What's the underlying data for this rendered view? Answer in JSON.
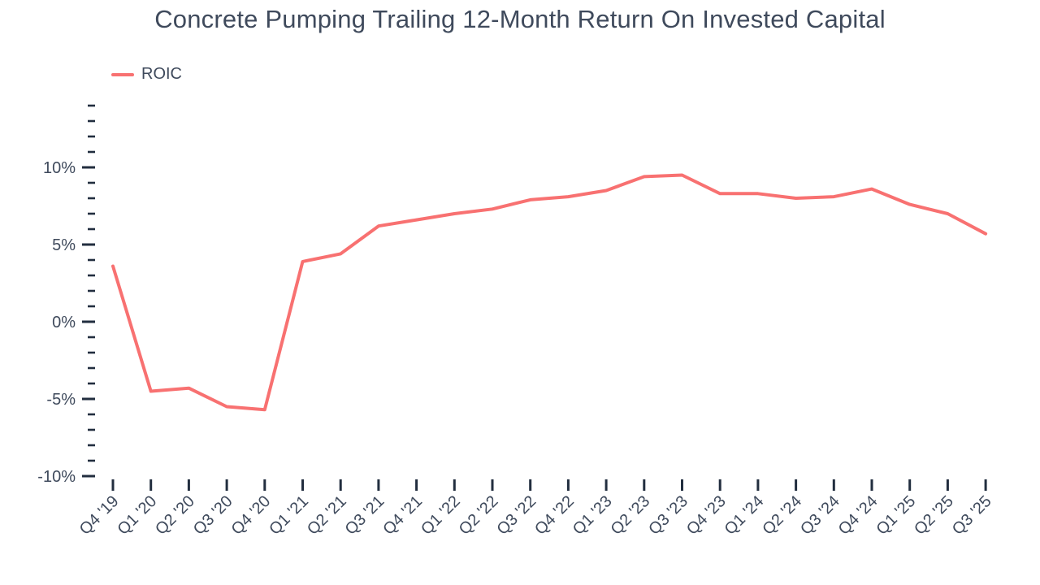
{
  "title": "Concrete Pumping Trailing 12-Month Return On Invested Capital",
  "legend": {
    "label": "ROIC"
  },
  "colors": {
    "line": "#F87171",
    "text": "#3F4A5C",
    "tick": "#222E3F"
  },
  "chart_data": {
    "type": "line",
    "title": "Concrete Pumping Trailing 12-Month Return On Invested Capital",
    "legend_entries": [
      "ROIC"
    ],
    "legend_position": "top-left",
    "grid": false,
    "xlabel": "",
    "ylabel": "",
    "ylim": [
      -10,
      14
    ],
    "y_minor_tick_step": 1,
    "y_major_ticks": [
      {
        "value": -10,
        "label": "-10%"
      },
      {
        "value": -5,
        "label": "-5%"
      },
      {
        "value": 0,
        "label": "0%"
      },
      {
        "value": 5,
        "label": "5%"
      },
      {
        "value": 10,
        "label": "10%"
      }
    ],
    "categories": [
      "Q4 '19",
      "Q1 '20",
      "Q2 '20",
      "Q3 '20",
      "Q4 '20",
      "Q1 '21",
      "Q2 '21",
      "Q3 '21",
      "Q4 '21",
      "Q1 '22",
      "Q2 '22",
      "Q3 '22",
      "Q4 '22",
      "Q1 '23",
      "Q2 '23",
      "Q3 '23",
      "Q4 '23",
      "Q1 '24",
      "Q2 '24",
      "Q3 '24",
      "Q4 '24",
      "Q1 '25",
      "Q2 '25",
      "Q3 '25"
    ],
    "series": [
      {
        "name": "ROIC",
        "color": "#F87171",
        "unit": "%",
        "values": [
          3.6,
          -4.5,
          -4.3,
          -5.5,
          -5.7,
          3.9,
          4.4,
          6.2,
          6.6,
          7.0,
          7.3,
          7.9,
          8.1,
          8.5,
          9.4,
          9.5,
          8.3,
          8.3,
          8.0,
          8.1,
          8.6,
          7.6,
          7.0,
          5.7
        ]
      }
    ]
  }
}
